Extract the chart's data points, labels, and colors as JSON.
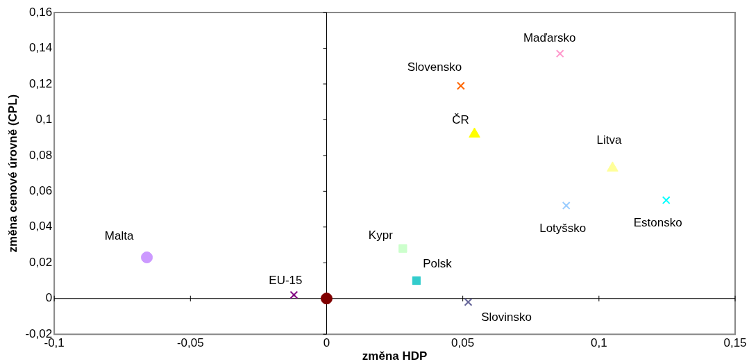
{
  "chart_data": {
    "type": "scatter",
    "xlabel": "změna HDP",
    "ylabel": "změna cenové úrovně (CPL)",
    "xlim": [
      -0.1,
      0.15
    ],
    "xticks": [
      {
        "value": -0.1,
        "label": "-0,1"
      },
      {
        "value": -0.05,
        "label": "-0,05"
      },
      {
        "value": 0,
        "label": "0"
      },
      {
        "value": 0.05,
        "label": "0,05"
      },
      {
        "value": 0.1,
        "label": "0,1"
      },
      {
        "value": 0.15,
        "label": "0,15"
      }
    ],
    "ylim": [
      -0.02,
      0.16
    ],
    "yticks": [
      {
        "value": -0.02,
        "label": "-0,02"
      },
      {
        "value": 0,
        "label": "0"
      },
      {
        "value": 0.02,
        "label": "0,02"
      },
      {
        "value": 0.04,
        "label": "0,04"
      },
      {
        "value": 0.06,
        "label": "0,06"
      },
      {
        "value": 0.08,
        "label": "0,08"
      },
      {
        "value": 0.1,
        "label": "0,1"
      },
      {
        "value": 0.12,
        "label": "0,12"
      },
      {
        "value": 0.14,
        "label": "0,14"
      },
      {
        "value": 0.16,
        "label": "0,16"
      }
    ],
    "legend": false,
    "series": [
      {
        "name": "Maďarsko",
        "color": "#ff99cc",
        "marker": "cross",
        "x": [
          0.0857
        ],
        "values": [
          0.137
        ]
      },
      {
        "name": "Slovensko",
        "color": "#ff6600",
        "marker": "cross",
        "x": [
          0.0493
        ],
        "values": [
          0.119
        ]
      },
      {
        "name": "ČR",
        "color": "#ffff00",
        "marker": "triangle",
        "x": [
          0.0543
        ],
        "values": [
          0.092
        ]
      },
      {
        "name": "Litva",
        "color": "#ffff99",
        "marker": "triangle",
        "x": [
          0.105
        ],
        "values": [
          0.073
        ]
      },
      {
        "name": "Lotyšsko",
        "color": "#99ccff",
        "marker": "cross",
        "x": [
          0.088
        ],
        "values": [
          0.052
        ]
      },
      {
        "name": "Estonsko",
        "color": "#00ffff",
        "marker": "cross",
        "x": [
          0.1247
        ],
        "values": [
          0.055
        ]
      },
      {
        "name": "Kypr",
        "color": "#ccffcc",
        "marker": "square",
        "x": [
          0.028
        ],
        "values": [
          0.028
        ]
      },
      {
        "name": "Polsk",
        "color": "#33cccc",
        "marker": "square",
        "x": [
          0.033
        ],
        "values": [
          0.01
        ]
      },
      {
        "name": "Slovinsko",
        "color": "#666699",
        "marker": "cross",
        "x": [
          0.052
        ],
        "values": [
          -0.002
        ]
      },
      {
        "name": "EU-15",
        "color": "#800080",
        "marker": "cross",
        "x": [
          -0.012
        ],
        "values": [
          0.002
        ]
      },
      {
        "name": "Malta",
        "color": "#cc99ff",
        "marker": "circle",
        "x": [
          -0.066
        ],
        "values": [
          0.023
        ]
      },
      {
        "color": "#800000",
        "marker": "circle",
        "x": [
          0
        ],
        "values": [
          0
        ]
      }
    ]
  }
}
